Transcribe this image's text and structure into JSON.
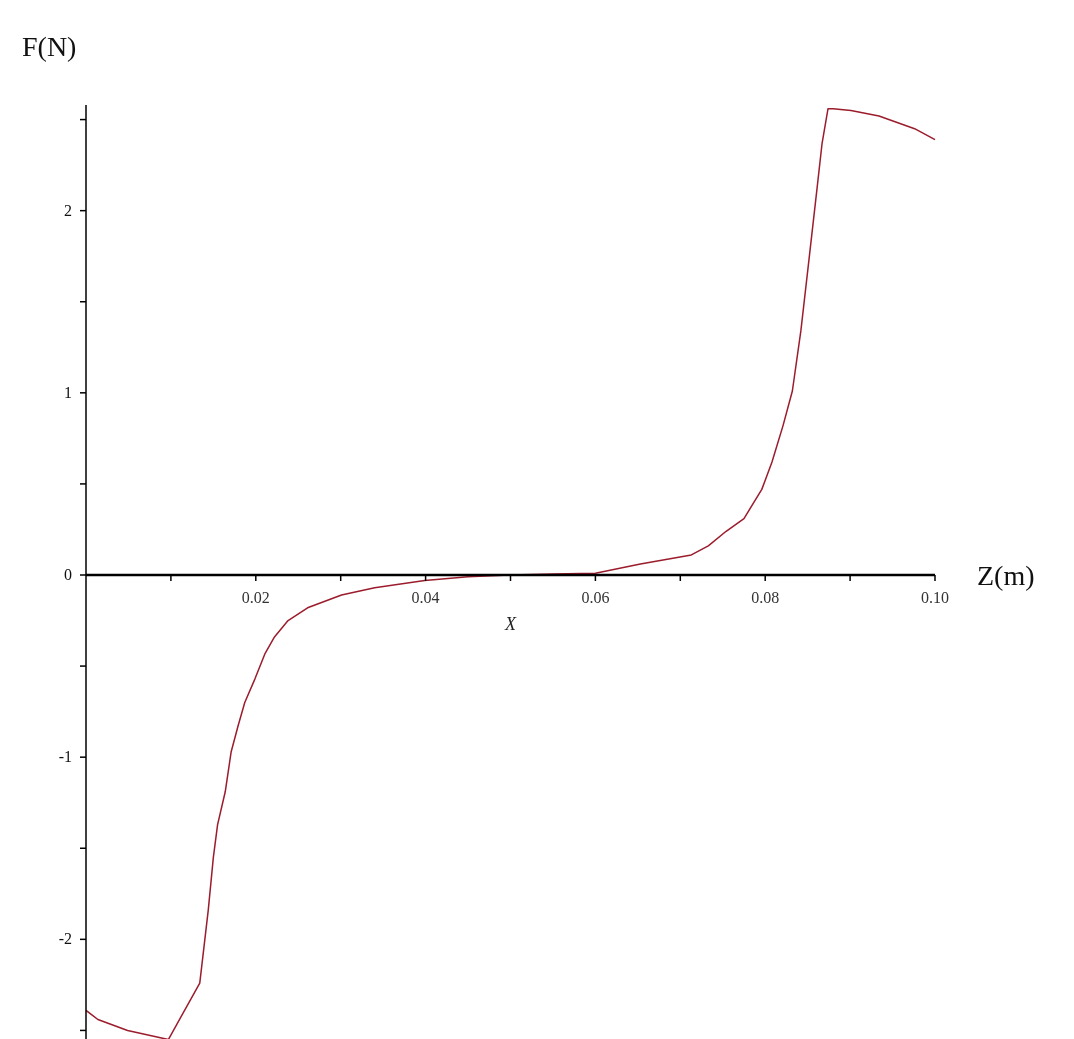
{
  "chart_data": {
    "type": "line",
    "xlabel": "Z(m)",
    "ylabel": "F(N)",
    "annotations": [
      "X"
    ],
    "x": [
      0,
      0.0014,
      0.0049,
      0.0097,
      0.0134,
      0.0144,
      0.015,
      0.0155,
      0.0164,
      0.0171,
      0.0179,
      0.0187,
      0.0199,
      0.0211,
      0.0222,
      0.0238,
      0.0261,
      0.0301,
      0.034,
      0.0399,
      0.045,
      0.05,
      0.055,
      0.06,
      0.0653,
      0.0713,
      0.0733,
      0.0754,
      0.0775,
      0.0796,
      0.0808,
      0.0821,
      0.0832,
      0.0842,
      0.0853,
      0.0861,
      0.0867,
      0.0874,
      0.088,
      0.0901,
      0.0934,
      0.0976,
      0.1
    ],
    "series": [
      {
        "color": "#9b1c2c",
        "values": [
          -2.39,
          -2.44,
          -2.5,
          -2.55,
          -2.24,
          -1.84,
          -1.55,
          -1.37,
          -1.19,
          -0.97,
          -0.83,
          -0.7,
          -0.57,
          -0.43,
          -0.34,
          -0.25,
          -0.18,
          -0.11,
          -0.07,
          -0.03,
          -0.01,
          0,
          0.005,
          0.01,
          0.06,
          0.11,
          0.16,
          0.24,
          0.31,
          0.47,
          0.62,
          0.82,
          1.01,
          1.34,
          1.79,
          2.12,
          2.37,
          2.56,
          2.56,
          2.55,
          2.52,
          2.45,
          2.39
        ]
      }
    ],
    "xlim": [
      0,
      0.1
    ],
    "ylim": [
      -2.58,
      2.58
    ],
    "xticks": [
      {
        "value": 0.01,
        "label": null
      },
      0.02,
      {
        "value": 0.03,
        "label": null
      },
      0.04,
      {
        "value": 0.05,
        "label": null
      },
      0.06,
      {
        "value": 0.07,
        "label": null
      },
      0.08,
      {
        "value": 0.09,
        "label": null
      },
      {
        "value": 0.1,
        "label": "0.10"
      }
    ],
    "yticks": [
      {
        "value": -2.5,
        "label": null
      },
      -2,
      {
        "value": -1.5,
        "label": null
      },
      -1,
      {
        "value": -0.5,
        "label": null
      },
      0,
      {
        "value": 0.5,
        "label": null
      },
      1,
      {
        "value": 1.5,
        "label": null
      },
      2,
      {
        "value": 2.5,
        "label": null
      }
    ],
    "grid": false,
    "marker": "none",
    "line_style": "solid"
  }
}
